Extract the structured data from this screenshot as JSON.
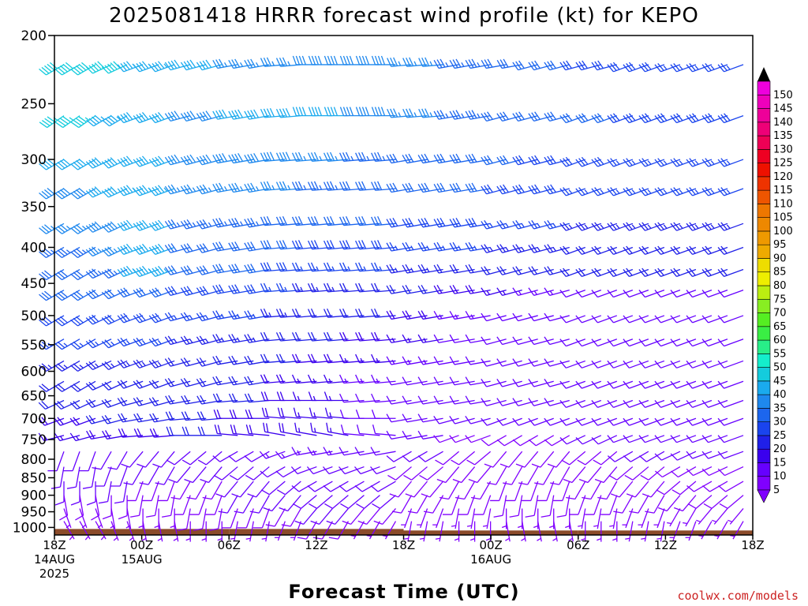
{
  "chart_data": {
    "type": "wind-barb time-height section",
    "title": "2025081418 HRRR forecast wind profile (kt) for KEPO",
    "xlabel": "Forecast Time (UTC)",
    "credit": "coolwx.com/models",
    "y_axis": {
      "label": "",
      "scale": "log-pressure, inverted",
      "ticks": [
        "200",
        "250",
        "300",
        "350",
        "400",
        "450",
        "500",
        "550",
        "600",
        "650",
        "700",
        "750",
        "800",
        "850",
        "900",
        "950",
        "1000"
      ],
      "ylim": [
        1025,
        200
      ]
    },
    "x_axis": {
      "ticks": [
        {
          "hours": 0,
          "l1": "18Z",
          "l2": "14AUG",
          "l3": "2025"
        },
        {
          "hours": 6,
          "l1": "00Z",
          "l2": "15AUG",
          "l3": ""
        },
        {
          "hours": 12,
          "l1": "06Z",
          "l2": "",
          "l3": ""
        },
        {
          "hours": 18,
          "l1": "12Z",
          "l2": "",
          "l3": ""
        },
        {
          "hours": 24,
          "l1": "18Z",
          "l2": "",
          "l3": ""
        },
        {
          "hours": 30,
          "l1": "00Z",
          "l2": "16AUG",
          "l3": ""
        },
        {
          "hours": 36,
          "l1": "06Z",
          "l2": "",
          "l3": ""
        },
        {
          "hours": 42,
          "l1": "12Z",
          "l2": "",
          "l3": ""
        },
        {
          "hours": 48,
          "l1": "18Z",
          "l2": "",
          "l3": ""
        }
      ],
      "xlim": [
        0,
        48
      ]
    },
    "colorbar": {
      "units": "kt",
      "levels": [
        5,
        10,
        15,
        20,
        25,
        30,
        35,
        40,
        45,
        50,
        55,
        60,
        65,
        70,
        75,
        80,
        85,
        90,
        95,
        100,
        105,
        110,
        115,
        120,
        125,
        130,
        135,
        140,
        145,
        150
      ],
      "colors": [
        "#8000ff",
        "#6600ff",
        "#3a00ee",
        "#2020e8",
        "#1a44ee",
        "#1c66ee",
        "#1e88ee",
        "#1aaaee",
        "#14ccdd",
        "#14eecc",
        "#28ee88",
        "#3aee44",
        "#55ee22",
        "#88ee22",
        "#bbee11",
        "#eeee00",
        "#eedd00",
        "#eeaa00",
        "#ee9900",
        "#ee8800",
        "#ee7700",
        "#ee5500",
        "#ee3300",
        "#ee1100",
        "#ee0022",
        "#ee0055",
        "#ee0077",
        "#ee0099",
        "#ee00bb",
        "#ee00dd"
      ]
    },
    "terrain": {
      "color": "#8b4b2a",
      "top_hpa": [
        1005,
        1005,
        1010,
        1010
      ]
    },
    "wind_rows": [
      {
        "p": 220,
        "spd": [
          48,
          48,
          44,
          40,
          36,
          36,
          38,
          38,
          36,
          34,
          32,
          30,
          28,
          28,
          26,
          26
        ],
        "dir": [
          240,
          245,
          250,
          255,
          260,
          265,
          270,
          270,
          265,
          260,
          260,
          255,
          255,
          250,
          250,
          250
        ]
      },
      {
        "p": 260,
        "spd": [
          46,
          44,
          40,
          38,
          42,
          42,
          40,
          38,
          36,
          34,
          32,
          30,
          30,
          28,
          28,
          28
        ],
        "dir": [
          235,
          240,
          250,
          255,
          260,
          265,
          270,
          270,
          265,
          260,
          255,
          255,
          250,
          250,
          250,
          250
        ]
      },
      {
        "p": 300,
        "spd": [
          40,
          40,
          42,
          38,
          38,
          38,
          36,
          34,
          32,
          30,
          30,
          28,
          28,
          26,
          26,
          26
        ],
        "dir": [
          240,
          245,
          250,
          255,
          260,
          265,
          265,
          265,
          260,
          260,
          255,
          255,
          250,
          250,
          250,
          250
        ]
      },
      {
        "p": 330,
        "spd": [
          38,
          40,
          44,
          36,
          36,
          36,
          34,
          32,
          30,
          30,
          28,
          28,
          26,
          26,
          26,
          26
        ],
        "dir": [
          240,
          245,
          250,
          255,
          260,
          265,
          265,
          265,
          260,
          260,
          255,
          255,
          250,
          250,
          250,
          250
        ]
      },
      {
        "p": 370,
        "spd": [
          36,
          38,
          40,
          34,
          34,
          32,
          30,
          30,
          28,
          28,
          26,
          26,
          24,
          24,
          24,
          24
        ],
        "dir": [
          240,
          245,
          250,
          255,
          260,
          265,
          265,
          265,
          260,
          260,
          255,
          255,
          250,
          250,
          250,
          250
        ]
      },
      {
        "p": 400,
        "spd": [
          34,
          36,
          40,
          32,
          32,
          30,
          28,
          28,
          26,
          26,
          24,
          24,
          22,
          22,
          22,
          22
        ],
        "dir": [
          240,
          245,
          250,
          255,
          260,
          265,
          265,
          265,
          260,
          260,
          255,
          255,
          250,
          250,
          250,
          250
        ]
      },
      {
        "p": 430,
        "spd": [
          32,
          34,
          44,
          30,
          30,
          28,
          26,
          26,
          24,
          22,
          22,
          20,
          20,
          20,
          20,
          20
        ],
        "dir": [
          240,
          245,
          250,
          255,
          260,
          265,
          265,
          265,
          260,
          260,
          255,
          255,
          250,
          250,
          250,
          250
        ]
      },
      {
        "p": 460,
        "spd": [
          30,
          30,
          30,
          28,
          28,
          26,
          24,
          22,
          20,
          18,
          16,
          14,
          12,
          12,
          12,
          12
        ],
        "dir": [
          240,
          245,
          250,
          255,
          260,
          265,
          265,
          265,
          260,
          260,
          255,
          255,
          250,
          250,
          250,
          250
        ]
      },
      {
        "p": 500,
        "spd": [
          28,
          28,
          28,
          26,
          26,
          24,
          22,
          20,
          18,
          14,
          12,
          12,
          10,
          10,
          10,
          10
        ],
        "dir": [
          240,
          245,
          250,
          255,
          260,
          265,
          265,
          265,
          260,
          260,
          255,
          255,
          250,
          250,
          250,
          250
        ]
      },
      {
        "p": 540,
        "spd": [
          26,
          26,
          26,
          24,
          24,
          22,
          20,
          18,
          16,
          12,
          12,
          10,
          10,
          10,
          10,
          10
        ],
        "dir": [
          240,
          245,
          250,
          255,
          260,
          265,
          265,
          265,
          260,
          260,
          255,
          255,
          250,
          250,
          250,
          250
        ]
      },
      {
        "p": 580,
        "spd": [
          24,
          24,
          24,
          22,
          22,
          20,
          18,
          16,
          14,
          12,
          10,
          10,
          10,
          10,
          10,
          10
        ],
        "dir": [
          240,
          245,
          250,
          255,
          260,
          265,
          265,
          265,
          260,
          260,
          255,
          255,
          250,
          250,
          250,
          250
        ]
      },
      {
        "p": 620,
        "spd": [
          22,
          22,
          22,
          20,
          20,
          18,
          16,
          14,
          12,
          10,
          10,
          10,
          10,
          10,
          10,
          10
        ],
        "dir": [
          240,
          245,
          250,
          255,
          260,
          265,
          265,
          265,
          260,
          260,
          255,
          255,
          250,
          250,
          250,
          250
        ]
      },
      {
        "p": 660,
        "spd": [
          20,
          20,
          22,
          20,
          20,
          18,
          16,
          12,
          10,
          10,
          10,
          10,
          10,
          10,
          10,
          10
        ],
        "dir": [
          245,
          250,
          255,
          260,
          265,
          270,
          270,
          265,
          260,
          260,
          255,
          255,
          250,
          250,
          250,
          250
        ]
      },
      {
        "p": 700,
        "spd": [
          18,
          20,
          20,
          20,
          18,
          18,
          16,
          12,
          10,
          10,
          10,
          10,
          10,
          10,
          10,
          10
        ],
        "dir": [
          250,
          255,
          260,
          265,
          270,
          275,
          275,
          270,
          260,
          255,
          250,
          250,
          250,
          250,
          250,
          250
        ]
      },
      {
        "p": 740,
        "spd": [
          16,
          18,
          18,
          20,
          18,
          18,
          16,
          12,
          10,
          8,
          8,
          8,
          10,
          10,
          10,
          10
        ],
        "dir": [
          255,
          260,
          265,
          270,
          275,
          280,
          280,
          275,
          260,
          250,
          240,
          240,
          245,
          250,
          250,
          250
        ]
      },
      {
        "p": 780,
        "spd": [
          12,
          12,
          10,
          10,
          12,
          14,
          14,
          12,
          10,
          8,
          8,
          8,
          8,
          10,
          10,
          10
        ],
        "dir": [
          200,
          210,
          220,
          230,
          240,
          250,
          260,
          260,
          240,
          230,
          220,
          220,
          230,
          240,
          245,
          250
        ]
      },
      {
        "p": 820,
        "spd": [
          10,
          10,
          10,
          10,
          12,
          12,
          12,
          10,
          8,
          8,
          8,
          8,
          8,
          8,
          8,
          8
        ],
        "dir": [
          190,
          200,
          210,
          220,
          230,
          240,
          250,
          250,
          230,
          220,
          210,
          210,
          220,
          230,
          240,
          245
        ]
      },
      {
        "p": 860,
        "spd": [
          10,
          10,
          8,
          8,
          10,
          12,
          12,
          10,
          8,
          8,
          8,
          8,
          8,
          8,
          8,
          8
        ],
        "dir": [
          180,
          190,
          200,
          210,
          220,
          230,
          240,
          240,
          220,
          210,
          200,
          200,
          210,
          220,
          230,
          240
        ]
      },
      {
        "p": 900,
        "spd": [
          8,
          8,
          8,
          8,
          10,
          10,
          10,
          10,
          8,
          8,
          8,
          8,
          8,
          8,
          8,
          8
        ],
        "dir": [
          170,
          180,
          190,
          200,
          210,
          220,
          230,
          230,
          210,
          200,
          190,
          190,
          200,
          210,
          220,
          230
        ]
      },
      {
        "p": 940,
        "spd": [
          6,
          6,
          6,
          8,
          8,
          8,
          10,
          8,
          6,
          6,
          6,
          6,
          6,
          6,
          6,
          6
        ],
        "dir": [
          160,
          170,
          180,
          190,
          200,
          210,
          220,
          220,
          200,
          190,
          180,
          180,
          190,
          200,
          210,
          220
        ]
      },
      {
        "p": 980,
        "spd": [
          5,
          5,
          5,
          6,
          6,
          6,
          8,
          6,
          5,
          5,
          5,
          5,
          5,
          5,
          5,
          5
        ],
        "dir": [
          150,
          160,
          170,
          180,
          190,
          200,
          210,
          210,
          190,
          180,
          170,
          170,
          180,
          190,
          200,
          210
        ]
      }
    ]
  }
}
